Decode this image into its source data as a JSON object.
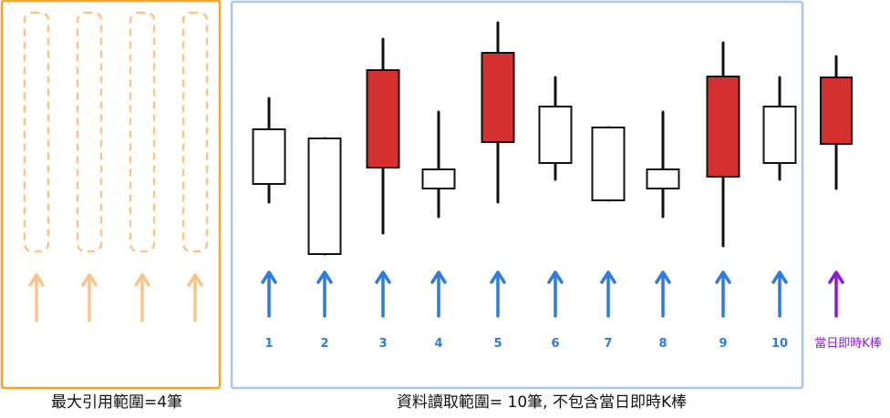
{
  "left_panel": {
    "caption": "最大引用範圍=4筆",
    "slot_count": 4,
    "color": "#f5a623",
    "slot_color": "#f9c68a"
  },
  "right_panel": {
    "caption": "資料讀取範圍= 10筆, 不包含當日即時K棒",
    "color": "#a9c8ee"
  },
  "colors": {
    "bullish": "#d3302f",
    "bearish": "#ffffff",
    "wick": "#111111",
    "arrow_history": "#2f7be0",
    "arrow_current": "#8a1bd6"
  },
  "candles": [
    {
      "label": "1",
      "filled": false
    },
    {
      "label": "2",
      "filled": false
    },
    {
      "label": "3",
      "filled": true
    },
    {
      "label": "4",
      "filled": false
    },
    {
      "label": "5",
      "filled": true
    },
    {
      "label": "6",
      "filled": false
    },
    {
      "label": "7",
      "filled": false
    },
    {
      "label": "8",
      "filled": false
    },
    {
      "label": "9",
      "filled": true
    },
    {
      "label": "10",
      "filled": false
    },
    {
      "label": "當日即時K棒",
      "filled": true,
      "current": true
    }
  ]
}
